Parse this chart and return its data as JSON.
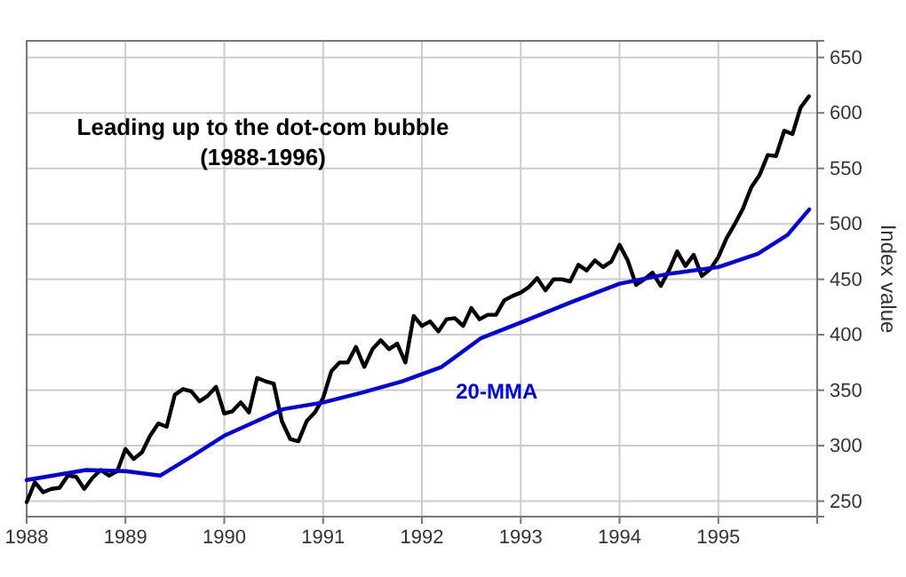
{
  "chart_data": {
    "type": "line",
    "ylabel": "Index value",
    "annotations": [
      "Leading up to the dot-com bubble (1988-1996)"
    ],
    "xlim": [
      1988,
      1996
    ],
    "xticks": [
      1988,
      1989,
      1990,
      1991,
      1992,
      1993,
      1994,
      1995
    ],
    "ylim": [
      236,
      665
    ],
    "yticks": [
      250,
      300,
      350,
      400,
      450,
      500,
      550,
      600,
      650
    ],
    "grid": true,
    "line_style": "solid",
    "marker": "none",
    "series": [
      {
        "color": "#000000",
        "x": [
          1988,
          1988.083,
          1988.167,
          1988.25,
          1988.333,
          1988.417,
          1988.5,
          1988.583,
          1988.667,
          1988.75,
          1988.833,
          1988.917,
          1989,
          1989.083,
          1989.167,
          1989.25,
          1989.333,
          1989.417,
          1989.5,
          1989.583,
          1989.667,
          1989.75,
          1989.833,
          1989.917,
          1990,
          1990.083,
          1990.167,
          1990.25,
          1990.333,
          1990.417,
          1990.5,
          1990.583,
          1990.667,
          1990.75,
          1990.833,
          1990.917,
          1991,
          1991.083,
          1991.167,
          1991.25,
          1991.333,
          1991.417,
          1991.5,
          1991.583,
          1991.667,
          1991.75,
          1991.833,
          1991.917,
          1992,
          1992.083,
          1992.167,
          1992.25,
          1992.333,
          1992.417,
          1992.5,
          1992.583,
          1992.667,
          1992.75,
          1992.833,
          1992.917,
          1993,
          1993.083,
          1993.167,
          1993.25,
          1993.333,
          1993.417,
          1993.5,
          1993.583,
          1993.667,
          1993.75,
          1993.833,
          1993.917,
          1994,
          1994.083,
          1994.167,
          1994.25,
          1994.333,
          1994.417,
          1994.5,
          1994.583,
          1994.667,
          1994.75,
          1994.833,
          1994.917,
          1995,
          1995.083,
          1995.167,
          1995.25,
          1995.333,
          1995.417,
          1995.5,
          1995.583,
          1995.667,
          1995.75,
          1995.833,
          1995.917
        ],
        "values": [
          249,
          267,
          258,
          261,
          262,
          273,
          272,
          261,
          271,
          278,
          273,
          277,
          297,
          288,
          294,
          309,
          320,
          317,
          346,
          351,
          349,
          340,
          345,
          353,
          329,
          331,
          339,
          330,
          361,
          358,
          356,
          322,
          306,
          304,
          322,
          330,
          343,
          367,
          375,
          375,
          389,
          371,
          387,
          395,
          387,
          392,
          375,
          417,
          408,
          412,
          403,
          414,
          415,
          408,
          424,
          414,
          418,
          418,
          431,
          435,
          438,
          443,
          451,
          440,
          450,
          450,
          448,
          463,
          458,
          467,
          461,
          466,
          481,
          467,
          445,
          450,
          456,
          444,
          458,
          475,
          462,
          472,
          453,
          459,
          470,
          487,
          500,
          514,
          533,
          544,
          562,
          561,
          584,
          581,
          605,
          615
        ]
      },
      {
        "name": "20-MMA",
        "color": "#0000dd",
        "x": [
          1988,
          1988.6,
          1989,
          1989.35,
          1989.7,
          1990,
          1990.3,
          1990.6,
          1991,
          1991.4,
          1991.8,
          1992.2,
          1992.6,
          1993,
          1993.5,
          1994,
          1994.5,
          1995,
          1995.4,
          1995.7,
          1995.92
        ],
        "values": [
          269,
          278,
          277,
          273,
          292,
          309,
          321,
          333,
          339,
          348,
          358,
          371,
          397,
          411,
          429,
          446,
          455,
          461,
          473,
          490,
          513
        ]
      }
    ]
  }
}
